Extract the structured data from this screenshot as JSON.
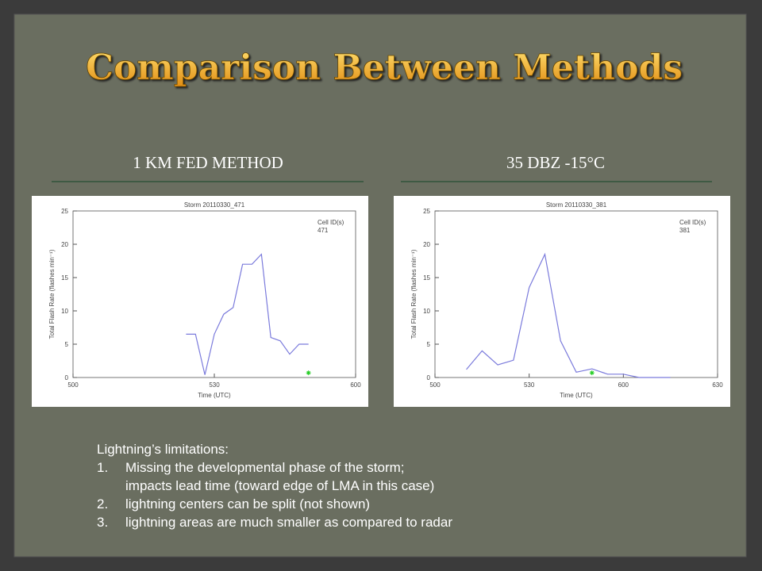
{
  "title": "Comparison Between Methods",
  "headings": [
    "1 KM FED METHOD",
    "35 DBZ -15°C"
  ],
  "chart_data": [
    {
      "type": "line",
      "title": "Storm 20110330_471",
      "legend_title": "Cell ID(s)",
      "x_label": "Time (UTC)",
      "y_label": "Total Flash Rate (flashes min⁻¹)",
      "x": [
        324,
        326,
        328,
        330,
        332,
        334,
        336,
        338,
        340,
        342,
        344,
        346,
        348,
        350
      ],
      "series": [
        {
          "name": "471",
          "color": "#7b7bdc",
          "values": [
            6.5,
            6.5,
            0.4,
            6.5,
            9.5,
            10.5,
            17,
            17,
            18.5,
            6,
            5.5,
            3.5,
            5,
            5
          ]
        }
      ],
      "markers": [
        {
          "x": 350,
          "y": 0.7,
          "color": "#22cc22"
        }
      ],
      "xlim": [
        300,
        360
      ],
      "xticks": [
        {
          "value": 300,
          "label": "500"
        },
        {
          "value": 330,
          "label": "530"
        },
        {
          "value": 360,
          "label": "600"
        }
      ],
      "ylim": [
        0,
        25
      ],
      "yticks": [
        0,
        5,
        10,
        15,
        20,
        25
      ]
    },
    {
      "type": "line",
      "title": "Storm 20110330_381",
      "legend_title": "Cell ID(s)",
      "x_label": "Time (UTC)",
      "y_label": "Total Flash Rate (flashes min⁻¹)",
      "x": [
        310,
        315,
        320,
        325,
        330,
        335,
        340,
        345,
        350,
        355,
        360,
        365,
        370,
        375
      ],
      "series": [
        {
          "name": "381",
          "color": "#7b7bdc",
          "values": [
            1.2,
            4,
            1.9,
            2.6,
            13.5,
            18.5,
            5.5,
            0.8,
            1.3,
            0.5,
            0.5,
            0,
            0,
            0
          ]
        }
      ],
      "markers": [
        {
          "x": 350,
          "y": 0.7,
          "color": "#22cc22"
        }
      ],
      "xlim": [
        300,
        390
      ],
      "xticks": [
        {
          "value": 300,
          "label": "500"
        },
        {
          "value": 330,
          "label": "530"
        },
        {
          "value": 360,
          "label": "600"
        },
        {
          "value": 390,
          "label": "630"
        }
      ],
      "ylim": [
        0,
        25
      ],
      "yticks": [
        0,
        5,
        10,
        15,
        20,
        25
      ]
    }
  ],
  "notes": {
    "heading": "Lightning’s limitations:",
    "items": [
      {
        "number": "1.",
        "lines": [
          "Missing the developmental phase of the storm;",
          "impacts lead time (toward edge of LMA in this case)"
        ]
      },
      {
        "number": "2.",
        "lines": [
          "lightning centers can be split (not shown)"
        ]
      },
      {
        "number": "3.",
        "lines": [
          "lightning areas are much smaller as compared to radar"
        ]
      }
    ]
  }
}
